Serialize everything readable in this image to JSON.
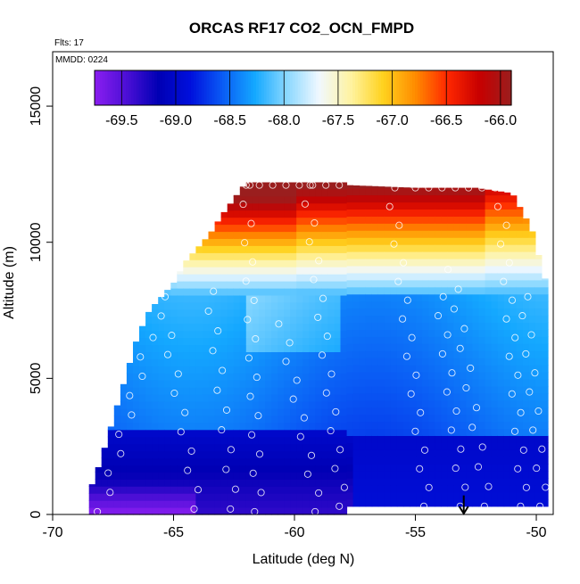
{
  "chart_data": {
    "type": "heatmap",
    "title": "ORCAS RF17 CO2_OCN_FMPD",
    "note_flights": "Flts: 17",
    "note_date": "MMDD: 0224",
    "xlabel": "Latitude (deg N)",
    "ylabel": "Altitude (m)",
    "xlim": [
      -70,
      -49.3
    ],
    "ylim": [
      0,
      17000
    ],
    "x_ticks": [
      -70,
      -65,
      -60,
      -55,
      -50
    ],
    "y_ticks": [
      0,
      5000,
      10000,
      15000
    ],
    "colorbar": {
      "range": [
        -69.75,
        -65.9
      ],
      "ticks": [
        -69.5,
        -69.0,
        -68.5,
        -68.0,
        -67.5,
        -67.0,
        -66.5,
        -66.0
      ],
      "tick_labels": [
        "-69.5",
        "-69.0",
        "-68.5",
        "-68.0",
        "-67.5",
        "-67.0",
        "-66.5",
        "-66.0"
      ],
      "colors": [
        "#8b1ef0",
        "#4b0fd6",
        "#0000b4",
        "#0010dd",
        "#0a5cf5",
        "#14a8ff",
        "#8ad8ff",
        "#f0f8ff",
        "#fff3a0",
        "#ffd21e",
        "#ff8c00",
        "#ff2800",
        "#c80000",
        "#9a1e1e"
      ]
    },
    "domain_envelope": {
      "lat": [
        -68.5,
        -68.0,
        -67.5,
        -67.0,
        -66.5,
        -66.0,
        -65.5,
        -65.0,
        -64.5,
        -64.0,
        -63.5,
        -63.0,
        -62.5,
        -62.0,
        -61.5,
        -57.8,
        -57.8,
        -55.0,
        -52.5,
        -51.0,
        -50.2,
        -49.6
      ],
      "top_alt": [
        800,
        2000,
        3500,
        5000,
        6500,
        7500,
        8000,
        8500,
        9300,
        9800,
        10300,
        11000,
        11600,
        12200,
        12200,
        12200,
        12100,
        12000,
        12000,
        11800,
        10500,
        8500
      ]
    },
    "arrow": {
      "lat": -53.0,
      "alt_top": 700,
      "alt_bottom": 0
    },
    "vertical_profiles": [
      {
        "lat_bottom": -68.0,
        "lat_top": -66.0,
        "alt_bottom": 100,
        "alt_top": 6500
      },
      {
        "lat_bottom": -64.0,
        "lat_top": -65.5,
        "alt_bottom": 200,
        "alt_top": 8000
      },
      {
        "lat_bottom": -62.5,
        "lat_top": -63.5,
        "alt_bottom": 200,
        "alt_top": 8200
      },
      {
        "lat_bottom": -61.5,
        "lat_top": -62.0,
        "alt_bottom": 100,
        "alt_top": 12100
      },
      {
        "lat_bottom": -59.0,
        "lat_top": -60.5,
        "alt_bottom": 100,
        "alt_top": 7000
      },
      {
        "lat_bottom": -58.0,
        "lat_top": -59.5,
        "alt_bottom": 300,
        "alt_top": 12100
      },
      {
        "lat_bottom": -54.5,
        "lat_top": -56.0,
        "alt_bottom": 300,
        "alt_top": 12000
      },
      {
        "lat_bottom": -53.0,
        "lat_top": -54.0,
        "alt_bottom": 300,
        "alt_top": 8000
      },
      {
        "lat_bottom": -52.0,
        "lat_top": -53.5,
        "alt_bottom": 300,
        "alt_top": 9000
      },
      {
        "lat_bottom": -50.5,
        "lat_top": -51.5,
        "alt_bottom": 300,
        "alt_top": 12000
      },
      {
        "lat_bottom": -49.7,
        "lat_top": -50.5,
        "alt_bottom": 300,
        "alt_top": 8000
      }
    ]
  }
}
